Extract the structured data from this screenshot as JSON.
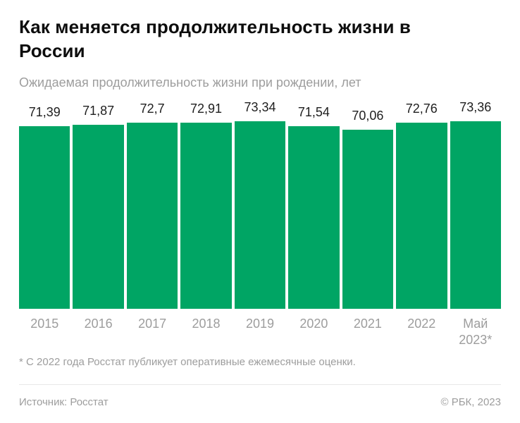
{
  "header": {
    "title": "Как меняется продолжительность жизни в России",
    "subtitle": "Ожидаемая продолжительность жизни при рождении, лет"
  },
  "chart_data": {
    "type": "bar",
    "title": "Как меняется продолжительность жизни в России",
    "subtitle": "Ожидаемая продолжительность жизни при рождении, лет",
    "categories": [
      "2015",
      "2016",
      "2017",
      "2018",
      "2019",
      "2020",
      "2021",
      "2022",
      "Май 2023*"
    ],
    "values": [
      71.39,
      71.87,
      72.7,
      72.91,
      73.34,
      71.54,
      70.06,
      72.76,
      73.36
    ],
    "value_labels": [
      "71,39",
      "71,87",
      "72,7",
      "72,91",
      "73,34",
      "71,54",
      "70,06",
      "72,76",
      "73,36"
    ],
    "bar_color": "#00a564",
    "ylim": [
      0,
      73.36
    ],
    "grid": false,
    "legend": "none"
  },
  "footnote": "* С 2022 года Росстат публикует оперативные ежемесячные оценки.",
  "footer": {
    "source": "Источник: Росстат",
    "copyright": "© РБК, 2023"
  }
}
